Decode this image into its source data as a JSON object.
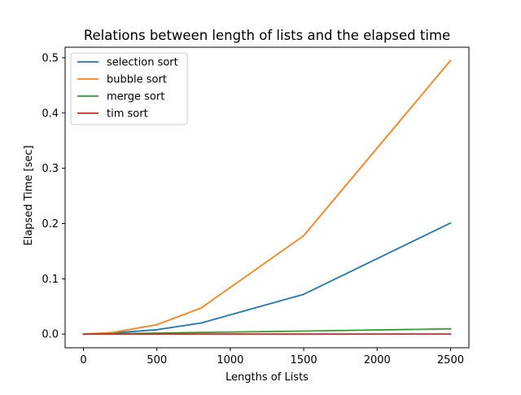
{
  "chart_data": {
    "type": "line",
    "title": "Relations between length of lists and the elapsed time",
    "xlabel": "Lengths of Lists",
    "ylabel": "Elapsed Time [sec]",
    "xlim": [
      -125,
      2625
    ],
    "ylim": [
      -0.0247,
      0.519
    ],
    "xticks": [
      0,
      500,
      1000,
      1500,
      2000,
      2500
    ],
    "xtick_labels": [
      "0",
      "500",
      "1000",
      "1500",
      "2000",
      "2500"
    ],
    "yticks": [
      0.0,
      0.1,
      0.2,
      0.3,
      0.4,
      0.5
    ],
    "ytick_labels": [
      "0.0",
      "0.1",
      "0.2",
      "0.3",
      "0.4",
      "0.5"
    ],
    "grid": false,
    "legend_position": "upper-left",
    "x": [
      0,
      200,
      500,
      800,
      1500,
      2500
    ],
    "series": [
      {
        "name": "selection sort",
        "color": "#1f77b4",
        "values": [
          0.0,
          0.002,
          0.008,
          0.02,
          0.072,
          0.201
        ]
      },
      {
        "name": "bubble sort",
        "color": "#ff7f0e",
        "values": [
          0.0,
          0.003,
          0.017,
          0.047,
          0.178,
          0.495
        ]
      },
      {
        "name": "merge sort",
        "color": "#2ca02c",
        "values": [
          0.0,
          0.0007,
          0.0018,
          0.003,
          0.0055,
          0.0095
        ]
      },
      {
        "name": "tim sort",
        "color": "#d62728",
        "values": [
          0.0,
          0.0,
          0.0,
          0.0001,
          0.0001,
          0.0002
        ]
      }
    ]
  }
}
